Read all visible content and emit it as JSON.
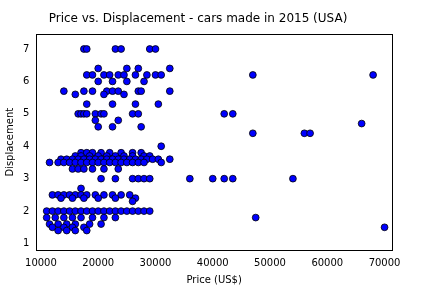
{
  "chart_data": {
    "type": "scatter",
    "title": "Price vs. Displacement - cars made in 2015 (USA)",
    "x_label": "Price (US$)",
    "y_label": "Displacement",
    "color": "#0000ff",
    "marker": "circle",
    "grid": false,
    "xlim": [
      9200,
      71300
    ],
    "ylim": [
      0.8,
      7.45
    ],
    "xticks": [
      10000,
      20000,
      30000,
      40000,
      50000,
      60000,
      70000
    ],
    "yticks": [
      1,
      2,
      3,
      4,
      5,
      6,
      7
    ],
    "x": [
      17500,
      18000,
      23000,
      24000,
      29000,
      30000,
      20000,
      25000,
      27000,
      32500,
      18000,
      19000,
      21000,
      22000,
      23500,
      24500,
      26500,
      28500,
      30000,
      31000,
      47000,
      68000,
      20000,
      22500,
      25000,
      28000,
      14000,
      17500,
      19000,
      21500,
      22500,
      23500,
      27000,
      27500,
      32500,
      16000,
      21000,
      24500,
      18000,
      22500,
      26500,
      30500,
      16500,
      17000,
      17500,
      18000,
      19500,
      20500,
      21000,
      26000,
      27000,
      42000,
      43500,
      19500,
      23500,
      66000,
      20000,
      22500,
      27500,
      47000,
      56000,
      57000,
      31000,
      17000,
      18000,
      19000,
      20500,
      22000,
      24000,
      26000,
      27500,
      16000,
      17000,
      18500,
      20000,
      21500,
      23000,
      24500,
      26000,
      28000,
      29000,
      13500,
      14500,
      15500,
      16500,
      17500,
      18500,
      19500,
      20500,
      21500,
      22500,
      23500,
      24500,
      25500,
      26500,
      27500,
      28500,
      29500,
      30500,
      32500,
      11500,
      13000,
      14000,
      15000,
      16000,
      17000,
      18000,
      19000,
      20000,
      21000,
      22000,
      23000,
      24000,
      25000,
      26000,
      27000,
      28000,
      31000,
      15500,
      16500,
      17500,
      19000,
      21000,
      23500,
      20500,
      23000,
      26000,
      27000,
      28000,
      29000,
      36000,
      40000,
      42000,
      43500,
      54000,
      17000,
      12000,
      13000,
      14000,
      15000,
      16000,
      17000,
      18000,
      19500,
      21000,
      22500,
      24000,
      25500,
      13500,
      15500,
      17500,
      20000,
      23000,
      26500,
      26000,
      11000,
      12000,
      13000,
      14000,
      15000,
      16000,
      17000,
      18000,
      19000,
      20000,
      21000,
      22000,
      23000,
      24000,
      25000,
      26000,
      27000,
      28000,
      29000,
      11000,
      12500,
      14000,
      15500,
      17000,
      19000,
      21000,
      23000,
      47500,
      11500,
      13000,
      14500,
      16000,
      18500,
      20500,
      12000,
      14000,
      15500,
      17500,
      70000,
      13000,
      14500,
      16000,
      18000
    ],
    "values": [
      7.0,
      7.0,
      7.0,
      7.0,
      7.0,
      7.0,
      6.4,
      6.4,
      6.4,
      6.4,
      6.2,
      6.2,
      6.2,
      6.2,
      6.2,
      6.2,
      6.2,
      6.2,
      6.2,
      6.2,
      6.2,
      6.2,
      6.0,
      6.0,
      6.0,
      6.0,
      5.7,
      5.7,
      5.7,
      5.7,
      5.7,
      5.7,
      5.7,
      5.7,
      5.7,
      5.6,
      5.6,
      5.6,
      5.3,
      5.3,
      5.3,
      5.3,
      5.0,
      5.0,
      5.0,
      5.0,
      5.0,
      5.0,
      5.0,
      5.0,
      5.0,
      5.0,
      5.0,
      4.8,
      4.8,
      4.7,
      4.6,
      4.6,
      4.6,
      4.4,
      4.4,
      4.4,
      4.0,
      3.8,
      3.8,
      3.8,
      3.8,
      3.8,
      3.8,
      3.8,
      3.8,
      3.7,
      3.7,
      3.7,
      3.7,
      3.7,
      3.7,
      3.7,
      3.7,
      3.7,
      3.7,
      3.6,
      3.6,
      3.6,
      3.6,
      3.6,
      3.6,
      3.6,
      3.6,
      3.6,
      3.6,
      3.6,
      3.6,
      3.6,
      3.6,
      3.6,
      3.6,
      3.6,
      3.6,
      3.6,
      3.5,
      3.5,
      3.5,
      3.5,
      3.5,
      3.5,
      3.5,
      3.5,
      3.5,
      3.5,
      3.5,
      3.5,
      3.5,
      3.5,
      3.5,
      3.5,
      3.5,
      3.5,
      3.3,
      3.3,
      3.3,
      3.3,
      3.3,
      3.3,
      3.0,
      3.0,
      3.0,
      3.0,
      3.0,
      3.0,
      3.0,
      3.0,
      3.0,
      3.0,
      3.0,
      2.7,
      2.5,
      2.5,
      2.5,
      2.5,
      2.5,
      2.5,
      2.5,
      2.5,
      2.5,
      2.5,
      2.5,
      2.5,
      2.4,
      2.4,
      2.4,
      2.4,
      2.4,
      2.4,
      2.3,
      2.0,
      2.0,
      2.0,
      2.0,
      2.0,
      2.0,
      2.0,
      2.0,
      2.0,
      2.0,
      2.0,
      2.0,
      2.0,
      2.0,
      2.0,
      2.0,
      2.0,
      2.0,
      2.0,
      1.8,
      1.8,
      1.8,
      1.8,
      1.8,
      1.8,
      1.8,
      1.8,
      1.8,
      1.6,
      1.6,
      1.6,
      1.6,
      1.6,
      1.6,
      1.5,
      1.5,
      1.5,
      1.5,
      1.5,
      1.4,
      1.4,
      1.4,
      1.4
    ]
  }
}
